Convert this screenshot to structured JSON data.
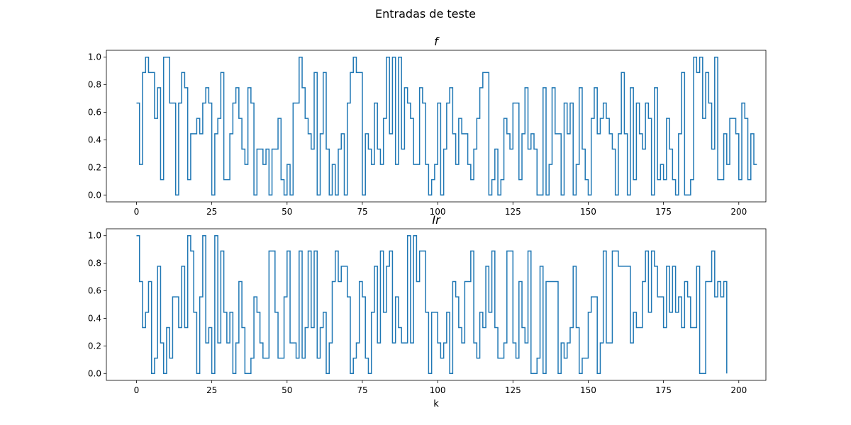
{
  "figure": {
    "suptitle": "Entradas de teste"
  },
  "colors": {
    "series": "#1f77b4",
    "axes": "#000000",
    "background": "#ffffff"
  },
  "chart_data": [
    {
      "type": "line",
      "drawstyle": "steps-post",
      "title": "f",
      "xlabel": "",
      "ylabel": "",
      "xlim": [
        -10,
        209
      ],
      "ylim": [
        -0.05,
        1.05
      ],
      "xticks": [
        0,
        25,
        50,
        75,
        100,
        125,
        150,
        175,
        200
      ],
      "yticks": [
        0.0,
        0.2,
        0.4,
        0.6,
        0.8,
        1.0
      ],
      "xtick_labels": [
        "0",
        "25",
        "50",
        "75",
        "100",
        "125",
        "150",
        "175",
        "200"
      ],
      "ytick_labels": [
        "0.0",
        "0.2",
        "0.4",
        "0.6",
        "0.8",
        "1.0"
      ],
      "grid": false,
      "x_start": 0,
      "series": [
        {
          "values": [
            0.667,
            0.222,
            0.889,
            1.0,
            0.889,
            0.889,
            0.556,
            0.778,
            0.111,
            1.0,
            1.0,
            0.667,
            0.667,
            0.0,
            0.667,
            0.889,
            0.778,
            0.111,
            0.444,
            0.444,
            0.556,
            0.444,
            0.667,
            0.778,
            0.667,
            0.0,
            0.444,
            0.556,
            0.889,
            0.111,
            0.111,
            0.444,
            0.667,
            0.778,
            0.556,
            0.333,
            0.222,
            0.778,
            0.667,
            0.0,
            0.333,
            0.333,
            0.222,
            0.333,
            0.0,
            0.333,
            0.333,
            0.556,
            0.111,
            0.0,
            0.222,
            0.0,
            0.667,
            0.667,
            1.0,
            0.778,
            0.556,
            0.444,
            0.333,
            0.889,
            0.0,
            0.444,
            0.889,
            0.333,
            0.0,
            0.222,
            0.0,
            0.333,
            0.444,
            0.0,
            0.667,
            0.889,
            1.0,
            0.889,
            0.889,
            0.0,
            0.444,
            0.333,
            0.222,
            0.667,
            0.333,
            0.222,
            0.556,
            1.0,
            0.444,
            1.0,
            0.222,
            1.0,
            0.333,
            0.778,
            0.667,
            0.556,
            0.222,
            0.222,
            0.778,
            0.667,
            0.222,
            0.0,
            0.111,
            0.222,
            0.667,
            0.0,
            0.333,
            0.667,
            0.778,
            0.444,
            0.222,
            0.556,
            0.444,
            0.444,
            0.222,
            0.111,
            0.333,
            0.556,
            0.778,
            0.889,
            0.889,
            0.0,
            0.111,
            0.333,
            0.0,
            0.111,
            0.556,
            0.444,
            0.333,
            0.667,
            0.667,
            0.111,
            0.444,
            0.778,
            0.333,
            0.444,
            0.333,
            0.0,
            0.0,
            0.778,
            0.0,
            0.222,
            0.778,
            0.444,
            0.444,
            0.0,
            0.667,
            0.444,
            0.667,
            0.0,
            0.222,
            0.778,
            0.333,
            0.111,
            0.0,
            0.556,
            0.778,
            0.444,
            0.556,
            0.667,
            0.556,
            0.444,
            0.333,
            0.0,
            0.444,
            0.889,
            0.444,
            0.0,
            0.778,
            0.111,
            0.667,
            0.444,
            0.333,
            0.667,
            0.556,
            0.0,
            0.778,
            0.111,
            0.222,
            0.111,
            0.556,
            0.333,
            0.111,
            0.0,
            0.444,
            0.889,
            0.0,
            0.0,
            0.111,
            1.0,
            0.889,
            1.0,
            0.556,
            0.889,
            0.667,
            0.333,
            1.0,
            0.111,
            0.111,
            0.444,
            0.222,
            0.556,
            0.556,
            0.444,
            0.111,
            0.667,
            0.556,
            0.111,
            0.444,
            0.222,
            0.222
          ]
        }
      ]
    },
    {
      "type": "line",
      "drawstyle": "steps-post",
      "title": "Ir",
      "xlabel": "k",
      "ylabel": "",
      "xlim": [
        -10,
        209
      ],
      "ylim": [
        -0.05,
        1.05
      ],
      "xticks": [
        0,
        25,
        50,
        75,
        100,
        125,
        150,
        175,
        200
      ],
      "yticks": [
        0.0,
        0.2,
        0.4,
        0.6,
        0.8,
        1.0
      ],
      "xtick_labels": [
        "0",
        "25",
        "50",
        "75",
        "100",
        "125",
        "150",
        "175",
        "200"
      ],
      "ytick_labels": [
        "0.0",
        "0.2",
        "0.4",
        "0.6",
        "0.8",
        "1.0"
      ],
      "grid": false,
      "x_start": 0,
      "series": [
        {
          "values": [
            1.0,
            0.667,
            0.333,
            0.444,
            0.667,
            0.0,
            0.111,
            0.778,
            0.222,
            0.0,
            0.333,
            0.111,
            0.556,
            0.556,
            0.333,
            0.778,
            0.333,
            1.0,
            0.889,
            0.444,
            0.0,
            0.556,
            1.0,
            0.222,
            0.333,
            0.0,
            1.0,
            0.222,
            0.889,
            0.444,
            0.222,
            0.444,
            0.0,
            0.222,
            0.667,
            0.333,
            0.0,
            0.0,
            0.111,
            0.556,
            0.444,
            0.222,
            0.111,
            0.111,
            0.889,
            0.889,
            0.444,
            0.111,
            0.111,
            0.556,
            0.889,
            0.222,
            0.222,
            0.111,
            0.889,
            0.111,
            0.333,
            0.889,
            0.333,
            0.889,
            0.111,
            0.333,
            0.444,
            0.0,
            0.222,
            0.667,
            0.889,
            0.667,
            0.778,
            0.778,
            0.556,
            0.0,
            0.111,
            0.222,
            0.667,
            0.556,
            0.111,
            0.0,
            0.444,
            0.778,
            0.222,
            0.889,
            0.444,
            0.778,
            0.889,
            0.222,
            0.556,
            0.333,
            0.222,
            0.222,
            1.0,
            0.222,
            1.0,
            0.667,
            0.889,
            0.889,
            0.444,
            0.0,
            0.444,
            0.444,
            0.222,
            0.111,
            0.222,
            0.444,
            0.0,
            0.667,
            0.556,
            0.333,
            0.222,
            0.667,
            0.667,
            0.889,
            0.222,
            0.111,
            0.444,
            0.333,
            0.778,
            0.444,
            0.889,
            0.333,
            0.111,
            0.111,
            0.222,
            0.889,
            0.889,
            0.222,
            0.111,
            0.667,
            0.333,
            0.222,
            0.889,
            0.0,
            0.0,
            0.111,
            0.778,
            0.0,
            0.667,
            0.667,
            0.667,
            0.667,
            0.0,
            0.222,
            0.111,
            0.222,
            0.333,
            0.778,
            0.333,
            0.0,
            0.111,
            0.111,
            0.444,
            0.556,
            0.556,
            0.0,
            0.222,
            0.889,
            0.222,
            0.222,
            0.889,
            0.889,
            0.778,
            0.778,
            0.778,
            0.778,
            0.222,
            0.444,
            0.333,
            0.333,
            0.667,
            0.889,
            0.444,
            0.889,
            0.778,
            0.556,
            0.556,
            0.333,
            0.778,
            0.444,
            0.778,
            0.444,
            0.556,
            0.333,
            0.667,
            0.556,
            0.333,
            0.333,
            0.778,
            0.0,
            0.0,
            0.667,
            0.667,
            0.889,
            0.556,
            0.667,
            0.556,
            0.667,
            0.0
          ]
        }
      ]
    }
  ]
}
